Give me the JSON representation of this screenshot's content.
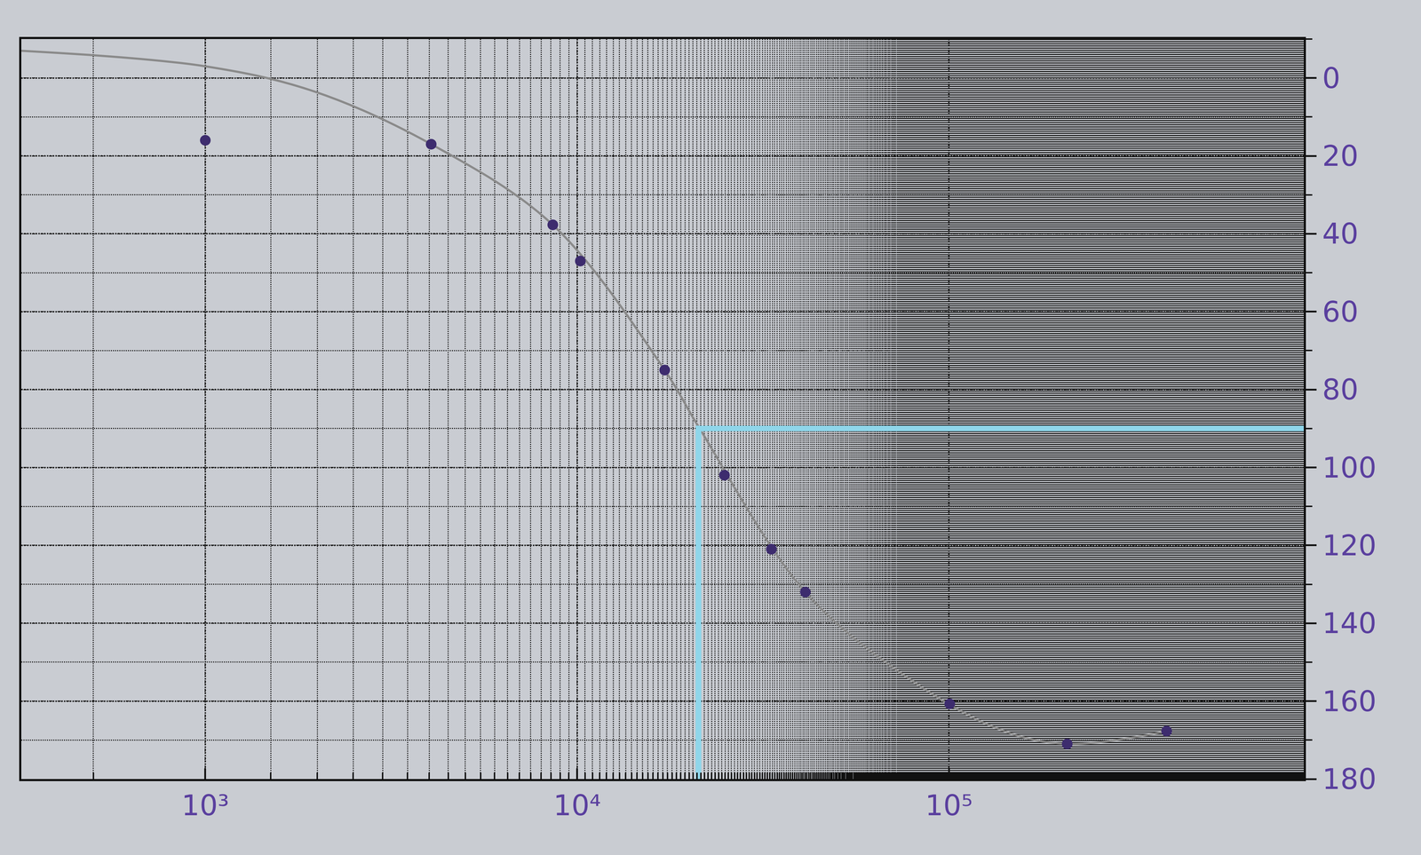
{
  "chart_data": {
    "type": "line",
    "log": "x",
    "grid": true,
    "xlim": [
      320,
      900000
    ],
    "xticks": [
      {
        "value": 1000,
        "label": "10³"
      },
      {
        "value": 10000,
        "label": "10⁴"
      },
      {
        "value": 100000,
        "label": "10⁵"
      }
    ],
    "ylim": [
      180,
      -10
    ],
    "yticks": [
      0,
      20,
      40,
      60,
      80,
      100,
      120,
      140,
      160,
      180
    ],
    "series": [
      {
        "type": "line",
        "color": "#8a8a8a",
        "line_style": "solid",
        "x": [
          320,
          1000,
          1970,
          4050,
          8600,
          17200,
          21200,
          41100,
          79400,
          138000,
          208000,
          385000
        ],
        "values": [
          -7,
          -3,
          3.5,
          17,
          37.7,
          75,
          89.5,
          132,
          154.7,
          167.4,
          171,
          167.7
        ]
      },
      {
        "type": "scatter",
        "color": "#3d2c6e",
        "marker": "circle",
        "x": [
          1000,
          4050,
          8600,
          10200,
          17200,
          24900,
          33300,
          41100,
          100500,
          208000,
          385000
        ],
        "values": [
          16,
          17,
          37.7,
          47,
          75,
          102,
          121,
          132,
          160.7,
          171,
          167.7
        ]
      },
      {
        "type": "line",
        "color": "#8fd6ea",
        "line_style": "solid",
        "x": [
          21200,
          21200,
          900000
        ],
        "values": [
          180,
          90,
          90
        ]
      }
    ]
  }
}
